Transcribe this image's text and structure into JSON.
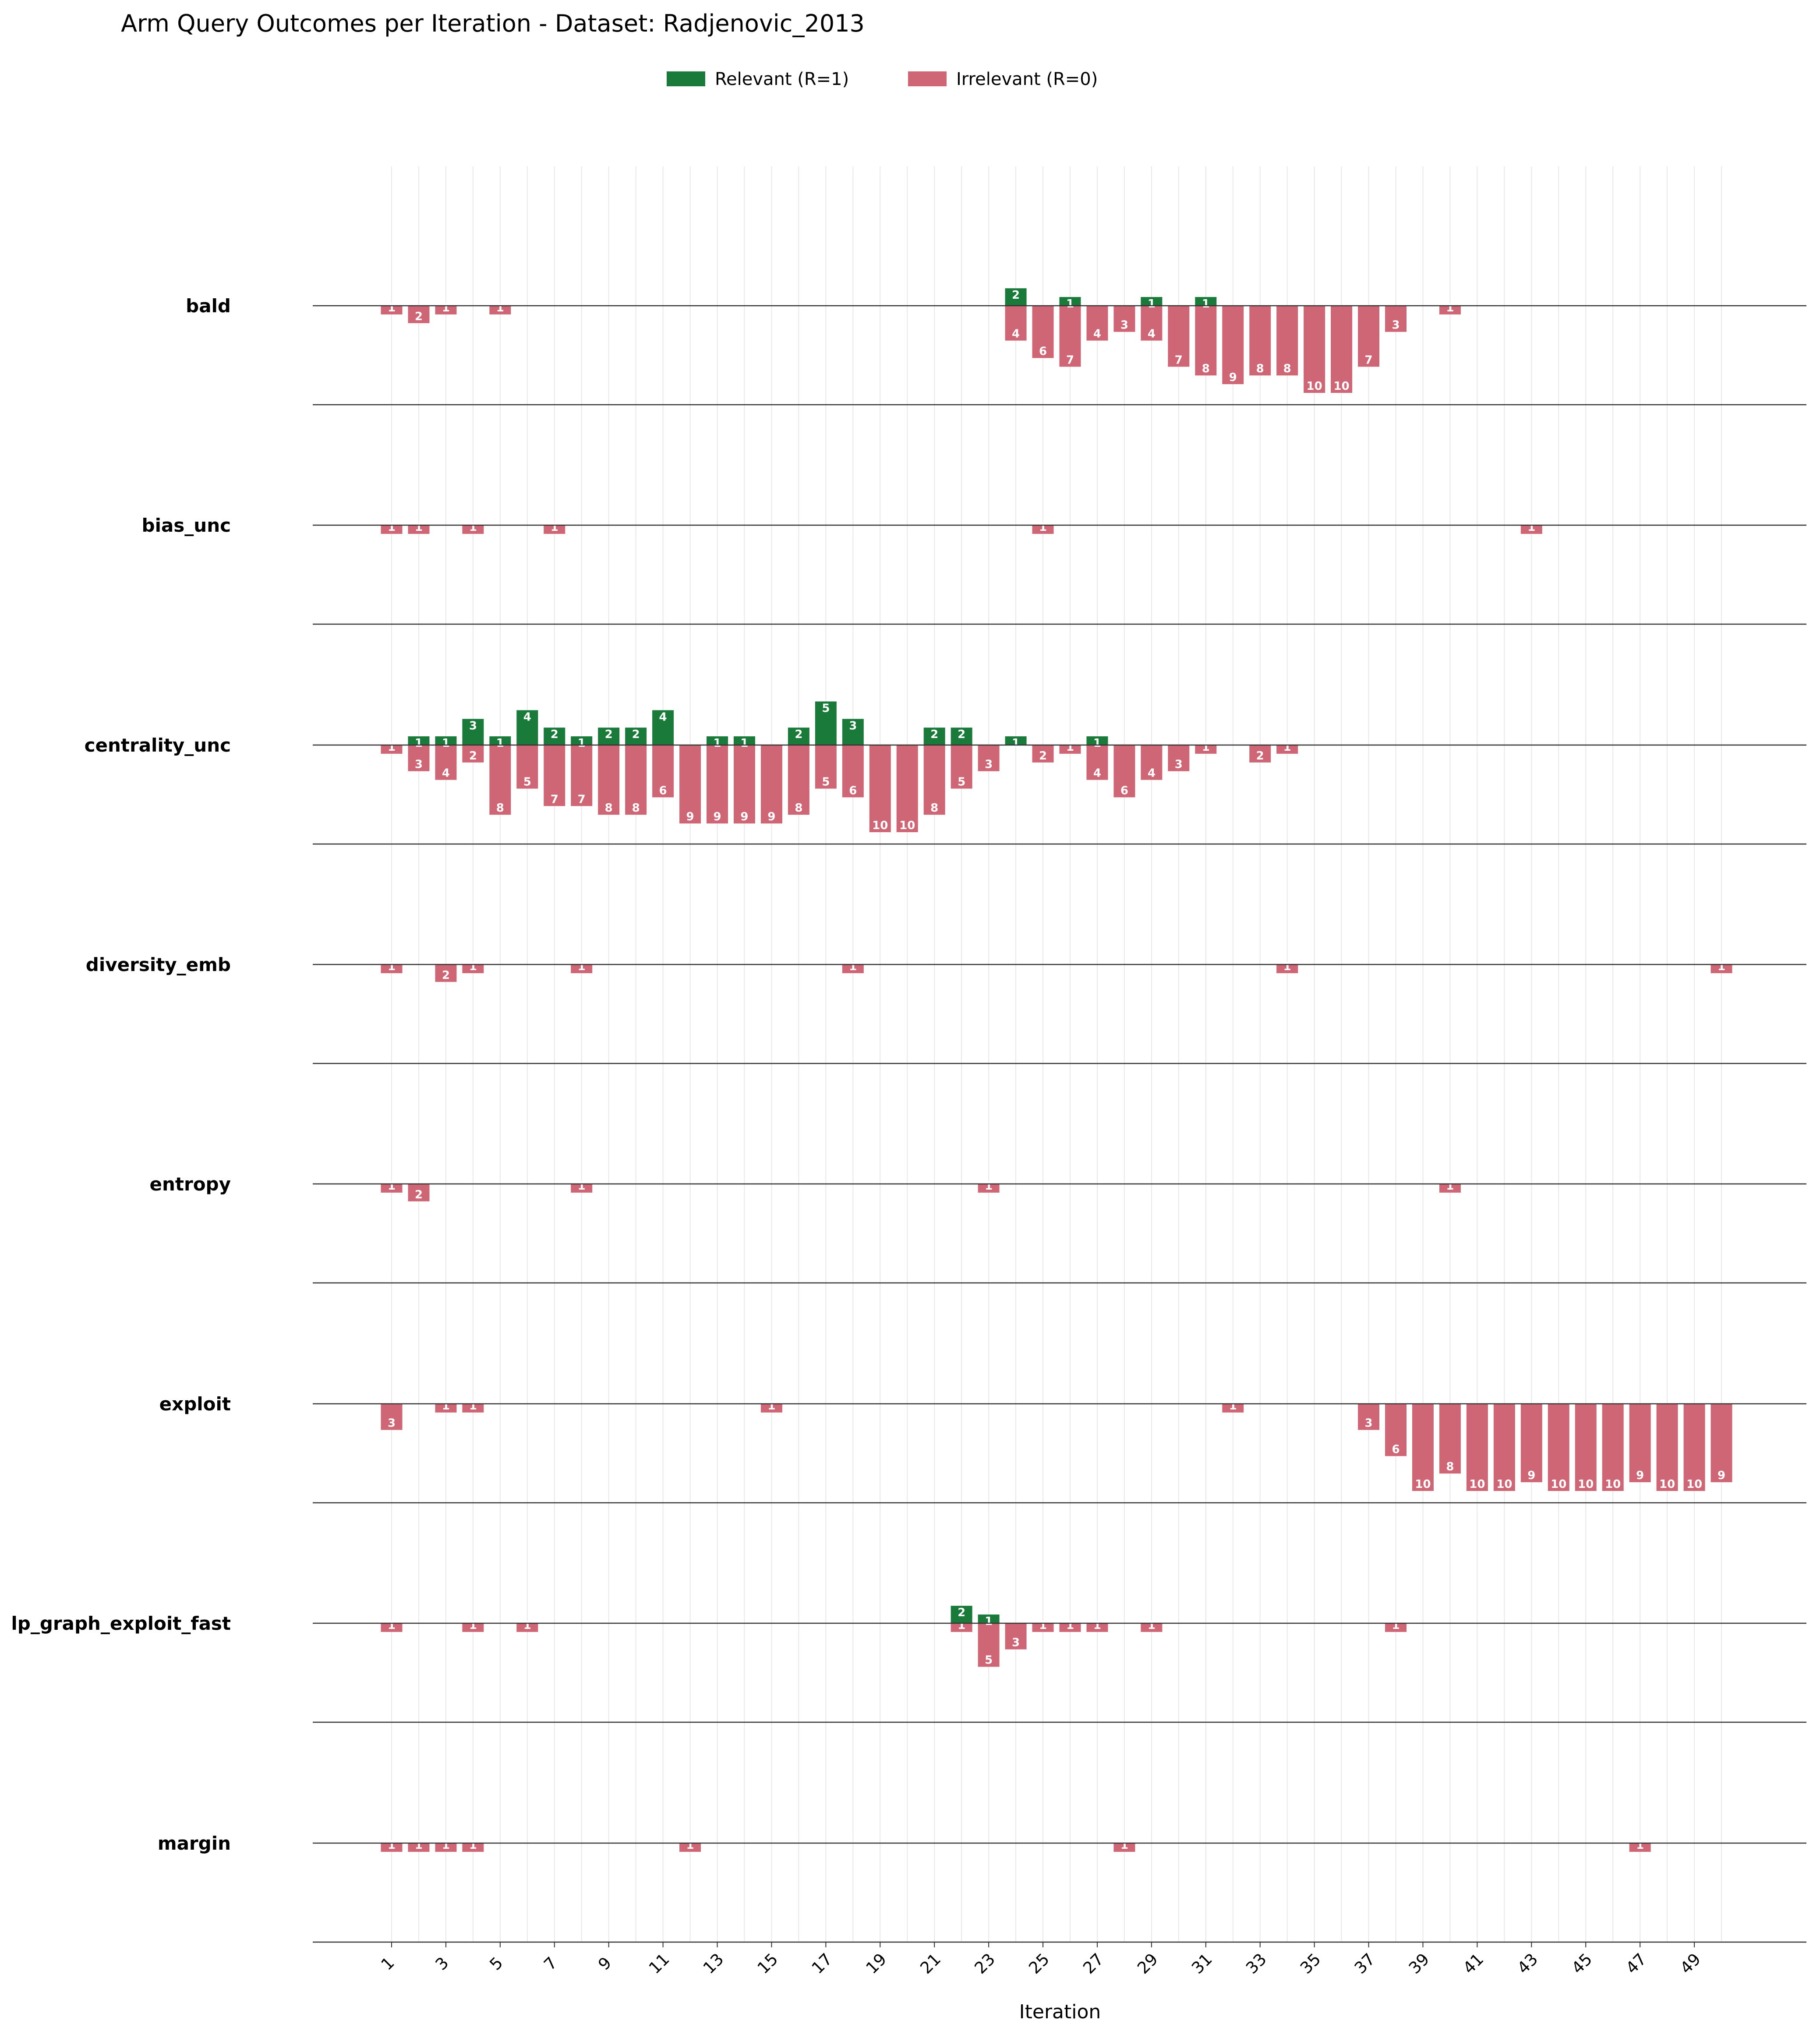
{
  "title": "Arm Query Outcomes per Iteration - Dataset: Radjenovic_2013",
  "legend": {
    "relevant": "Relevant (R=1)",
    "irrelevant": "Irrelevant (R=0)",
    "placement": "top-center"
  },
  "colors": {
    "relevant": "#1a7a3a",
    "irrelevant": "#cf6676",
    "baseline": "#333333",
    "grid": "#e8e8e8"
  },
  "chart_data": {
    "type": "bar",
    "subtype": "diverging-stacked-small-multiples",
    "title": "Arm Query Outcomes per Iteration - Dataset: Radjenovic_2013",
    "xlabel": "Iteration",
    "ylabel": "",
    "x_range": [
      1,
      50
    ],
    "x_tick_labels": [
      "1",
      "3",
      "5",
      "7",
      "9",
      "11",
      "13",
      "15",
      "17",
      "19",
      "21",
      "23",
      "25",
      "27",
      "29",
      "31",
      "33",
      "35",
      "37",
      "39",
      "41",
      "43",
      "45",
      "47",
      "49"
    ],
    "grid": "vertical",
    "series_names": [
      "Relevant (R=1)",
      "Irrelevant (R=0)"
    ],
    "arms": [
      {
        "name": "bald",
        "relevant": [
          [
            24,
            2
          ],
          [
            26,
            1
          ],
          [
            29,
            1
          ],
          [
            31,
            1
          ]
        ],
        "irrelevant": [
          [
            1,
            1
          ],
          [
            2,
            2
          ],
          [
            3,
            1
          ],
          [
            5,
            1
          ],
          [
            24,
            4
          ],
          [
            25,
            6
          ],
          [
            26,
            7
          ],
          [
            27,
            4
          ],
          [
            28,
            3
          ],
          [
            29,
            4
          ],
          [
            30,
            7
          ],
          [
            31,
            8
          ],
          [
            32,
            9
          ],
          [
            33,
            8
          ],
          [
            34,
            8
          ],
          [
            35,
            10
          ],
          [
            36,
            10
          ],
          [
            37,
            7
          ],
          [
            38,
            3
          ],
          [
            40,
            1
          ]
        ]
      },
      {
        "name": "bias_unc",
        "relevant": [],
        "irrelevant": [
          [
            1,
            1
          ],
          [
            2,
            1
          ],
          [
            4,
            1
          ],
          [
            7,
            1
          ],
          [
            25,
            1
          ],
          [
            43,
            1
          ]
        ]
      },
      {
        "name": "centrality_unc",
        "relevant": [
          [
            2,
            1
          ],
          [
            3,
            1
          ],
          [
            4,
            3
          ],
          [
            5,
            1
          ],
          [
            6,
            4
          ],
          [
            7,
            2
          ],
          [
            8,
            1
          ],
          [
            9,
            2
          ],
          [
            10,
            2
          ],
          [
            11,
            4
          ],
          [
            13,
            1
          ],
          [
            14,
            1
          ],
          [
            16,
            2
          ],
          [
            17,
            5
          ],
          [
            18,
            3
          ],
          [
            21,
            2
          ],
          [
            22,
            2
          ],
          [
            24,
            1
          ],
          [
            27,
            1
          ]
        ],
        "irrelevant": [
          [
            1,
            1
          ],
          [
            2,
            3
          ],
          [
            3,
            4
          ],
          [
            4,
            2
          ],
          [
            5,
            8
          ],
          [
            6,
            5
          ],
          [
            7,
            7
          ],
          [
            8,
            7
          ],
          [
            9,
            8
          ],
          [
            10,
            8
          ],
          [
            11,
            6
          ],
          [
            12,
            9
          ],
          [
            13,
            9
          ],
          [
            14,
            9
          ],
          [
            15,
            9
          ],
          [
            16,
            8
          ],
          [
            17,
            5
          ],
          [
            18,
            6
          ],
          [
            19,
            10
          ],
          [
            20,
            10
          ],
          [
            21,
            8
          ],
          [
            22,
            5
          ],
          [
            23,
            3
          ],
          [
            25,
            2
          ],
          [
            26,
            1
          ],
          [
            27,
            4
          ],
          [
            28,
            6
          ],
          [
            29,
            4
          ],
          [
            30,
            3
          ],
          [
            31,
            1
          ],
          [
            33,
            2
          ],
          [
            34,
            1
          ]
        ]
      },
      {
        "name": "diversity_emb",
        "relevant": [],
        "irrelevant": [
          [
            1,
            1
          ],
          [
            3,
            2
          ],
          [
            4,
            1
          ],
          [
            8,
            1
          ],
          [
            18,
            1
          ],
          [
            34,
            1
          ],
          [
            50,
            1
          ]
        ]
      },
      {
        "name": "entropy",
        "relevant": [],
        "irrelevant": [
          [
            1,
            1
          ],
          [
            2,
            2
          ],
          [
            8,
            1
          ],
          [
            23,
            1
          ],
          [
            40,
            1
          ]
        ]
      },
      {
        "name": "exploit",
        "relevant": [],
        "irrelevant": [
          [
            1,
            3
          ],
          [
            3,
            1
          ],
          [
            4,
            1
          ],
          [
            15,
            1
          ],
          [
            32,
            1
          ],
          [
            37,
            3
          ],
          [
            38,
            6
          ],
          [
            39,
            10
          ],
          [
            40,
            8
          ],
          [
            41,
            10
          ],
          [
            42,
            10
          ],
          [
            43,
            9
          ],
          [
            44,
            10
          ],
          [
            45,
            10
          ],
          [
            46,
            10
          ],
          [
            47,
            9
          ],
          [
            48,
            10
          ],
          [
            49,
            10
          ],
          [
            50,
            9
          ]
        ]
      },
      {
        "name": "lp_graph_exploit_fast",
        "relevant": [
          [
            22,
            2
          ],
          [
            23,
            1
          ]
        ],
        "irrelevant": [
          [
            1,
            1
          ],
          [
            4,
            1
          ],
          [
            6,
            1
          ],
          [
            22,
            1
          ],
          [
            23,
            5
          ],
          [
            24,
            3
          ],
          [
            25,
            1
          ],
          [
            26,
            1
          ],
          [
            27,
            1
          ],
          [
            29,
            1
          ],
          [
            38,
            1
          ]
        ]
      },
      {
        "name": "margin",
        "relevant": [],
        "irrelevant": [
          [
            1,
            1
          ],
          [
            2,
            1
          ],
          [
            3,
            1
          ],
          [
            4,
            1
          ],
          [
            12,
            1
          ],
          [
            28,
            1
          ],
          [
            47,
            1
          ]
        ]
      }
    ]
  }
}
